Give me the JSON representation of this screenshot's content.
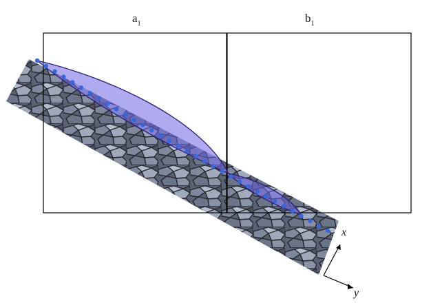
{
  "panels": [
    {
      "label": "a",
      "subscript": "1"
    },
    {
      "label": "b",
      "subscript": "1"
    }
  ],
  "axes": {
    "x_label": "x",
    "y_label": "y"
  },
  "colors": {
    "stone_base": "#5b6273",
    "stone_light": "#9aa3b8",
    "stone_dark": "#2b2f38",
    "lens_fill": "#6f66e6",
    "lens_stroke": "#2a1f7a",
    "dot": "#3a67d8",
    "frame": "#000000"
  }
}
